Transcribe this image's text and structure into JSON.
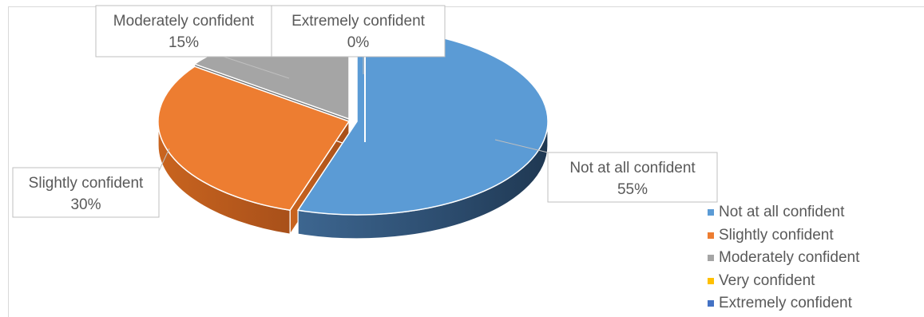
{
  "chart_data": {
    "type": "pie",
    "title": "",
    "style": "3d-exploded",
    "legend_position": "right",
    "slices": [
      {
        "label": "Not at all confident",
        "value": 55,
        "value_label": "55%",
        "color": "#5b9bd5"
      },
      {
        "label": "Slightly confident",
        "value": 30,
        "value_label": "30%",
        "color": "#ed7d31"
      },
      {
        "label": "Moderately confident",
        "value": 15,
        "value_label": "15%",
        "color": "#a5a5a5"
      },
      {
        "label": "Very confident",
        "value": 0,
        "value_label": "0%",
        "color": "#ffc000"
      },
      {
        "label": "Extremely confident",
        "value": 0,
        "value_label": "0%",
        "color": "#4472c4"
      }
    ],
    "data_labels_shown": [
      "Not at all confident",
      "Slightly confident",
      "Moderately confident",
      "Extremely confident"
    ]
  }
}
